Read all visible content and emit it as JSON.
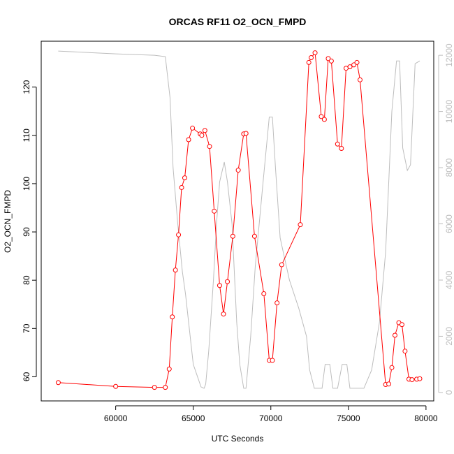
{
  "chart_data": {
    "type": "line",
    "title": "ORCAS RF11 O2_OCN_FMPD",
    "xlabel": "UTC Seconds",
    "ylabel": "O2_OCN_FMPD",
    "y2label": "",
    "xlim": [
      55200,
      80500
    ],
    "ylim": [
      55.0,
      129.5
    ],
    "y2lim": [
      -300,
      12500
    ],
    "xticks": [
      60000,
      65000,
      70000,
      75000,
      80000
    ],
    "yticks": [
      60,
      70,
      80,
      90,
      100,
      110,
      120
    ],
    "y2ticks": [
      0,
      2000,
      4000,
      6000,
      8000,
      10000,
      12000
    ],
    "grid": false,
    "series": [
      {
        "axis": "left",
        "style": "line+markers",
        "color": "#ff0000",
        "x": [
          56300,
          60000,
          62500,
          63200,
          63450,
          63650,
          63850,
          64050,
          64250,
          64450,
          64700,
          64950,
          65450,
          65550,
          65750,
          66050,
          66350,
          66700,
          66950,
          67200,
          67550,
          67900,
          68250,
          68400,
          68950,
          69550,
          69900,
          70100,
          70400,
          70700,
          71900,
          72450,
          72600,
          72850,
          73250,
          73450,
          73700,
          73900,
          74300,
          74550,
          74850,
          75100,
          75350,
          75550,
          75750,
          77400,
          77600,
          77800,
          78000,
          78250,
          78450,
          78650,
          78900,
          79100,
          79400,
          79600
        ],
        "values": [
          58.8,
          58.0,
          57.8,
          57.8,
          61.6,
          72.4,
          82.1,
          89.4,
          99.2,
          101.2,
          109.1,
          111.5,
          110.3,
          110.0,
          111.0,
          107.7,
          94.3,
          78.9,
          73.0,
          79.7,
          89.1,
          102.8,
          110.3,
          110.4,
          89.1,
          77.2,
          63.4,
          63.4,
          75.3,
          83.2,
          91.5,
          125.1,
          126.1,
          127.1,
          113.9,
          113.3,
          125.9,
          125.4,
          108.2,
          107.3,
          123.9,
          124.2,
          124.6,
          125.1,
          121.5,
          58.4,
          58.5,
          61.9,
          68.6,
          71.2,
          70.8,
          65.3,
          59.5,
          59.4,
          59.5,
          59.6
        ]
      },
      {
        "axis": "right",
        "style": "line",
        "color": "#bdbdbd",
        "x": [
          56300,
          60000,
          62500,
          63200,
          63500,
          63700,
          64000,
          64300,
          64500,
          65000,
          65500,
          65700,
          65800,
          66000,
          66300,
          66500,
          66700,
          67000,
          67200,
          67500,
          67800,
          68000,
          68250,
          68400,
          68700,
          69000,
          69500,
          69900,
          70100,
          70300,
          70600,
          70800,
          71200,
          71800,
          72300,
          72500,
          72800,
          73300,
          73500,
          73800,
          74000,
          74300,
          74600,
          74900,
          75100,
          75300,
          75600,
          75800,
          76000,
          76500,
          77000,
          77400,
          77600,
          77800,
          78100,
          78300,
          78500,
          78800,
          79000,
          79300,
          79600
        ],
        "values": [
          12150,
          12050,
          12000,
          11950,
          10500,
          8000,
          6000,
          4300,
          3500,
          1000,
          200,
          150,
          300,
          1500,
          4000,
          6000,
          7500,
          8200,
          7500,
          6000,
          2500,
          1000,
          150,
          150,
          2000,
          4500,
          7500,
          9800,
          9800,
          8000,
          5500,
          5000,
          4000,
          3000,
          2000,
          800,
          150,
          150,
          1000,
          1000,
          150,
          150,
          1000,
          1000,
          150,
          150,
          150,
          150,
          150,
          800,
          2500,
          5000,
          7500,
          10000,
          11800,
          11800,
          8700,
          7900,
          8100,
          11700,
          11800
        ]
      }
    ]
  }
}
